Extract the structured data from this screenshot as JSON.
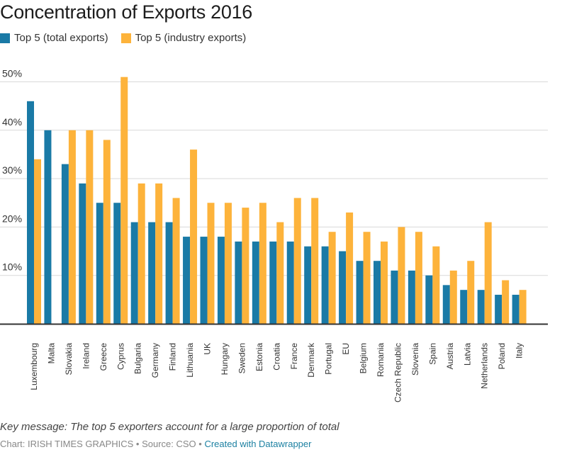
{
  "header": {
    "title": "Concentration of Exports 2016"
  },
  "legend": [
    {
      "label": "Top 5 (total exports)",
      "color": "#1a7aa6"
    },
    {
      "label": "Top 5 (industry exports)",
      "color": "#fdb33b"
    }
  ],
  "chart_data": {
    "type": "bar",
    "title": "Concentration of Exports 2016",
    "xlabel": "",
    "ylabel": "",
    "ylim": [
      0,
      50
    ],
    "yticks": [
      10,
      20,
      30,
      40,
      50
    ],
    "ytick_labels": [
      "10%",
      "20%",
      "30%",
      "40%",
      "50%"
    ],
    "grid": true,
    "legend_position": "top-left",
    "categories": [
      "Luxembourg",
      "Malta",
      "Slovakia",
      "Ireland",
      "Greece",
      "Cyprus",
      "Bulgaria",
      "Germany",
      "Finland",
      "Lithuania",
      "UK",
      "Hungary",
      "Sweden",
      "Estonia",
      "Croatia",
      "France",
      "Denmark",
      "Portugal",
      "EU",
      "Belgium",
      "Romania",
      "Czech Republic",
      "Slovenia",
      "Spain",
      "Austria",
      "Latvia",
      "Netherlands",
      "Poland",
      "Italy"
    ],
    "series": [
      {
        "name": "Top 5 (total exports)",
        "color": "#1a7aa6",
        "values": [
          46,
          40,
          33,
          29,
          25,
          25,
          21,
          21,
          21,
          18,
          18,
          18,
          17,
          17,
          17,
          17,
          16,
          16,
          15,
          13,
          13,
          11,
          11,
          10,
          8,
          7,
          7,
          6,
          6
        ]
      },
      {
        "name": "Top 5 (industry exports)",
        "color": "#fdb33b",
        "values": [
          34,
          null,
          40,
          40,
          38,
          51,
          29,
          29,
          26,
          36,
          25,
          25,
          24,
          25,
          21,
          26,
          26,
          19,
          23,
          19,
          17,
          20,
          19,
          16,
          11,
          13,
          21,
          9,
          7
        ]
      }
    ]
  },
  "footer": {
    "note": "Key message: The top 5 exporters account for a large proportion of total",
    "credit": "Chart: IRISH TIMES GRAPHICS",
    "separator": " • ",
    "source": "Source: CSO",
    "link": "Created with Datawrapper"
  }
}
